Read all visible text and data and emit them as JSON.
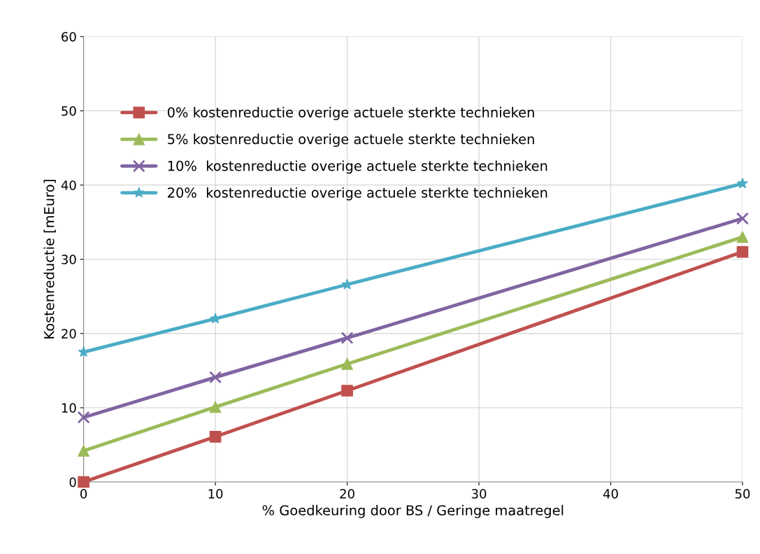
{
  "chart_data": {
    "type": "line",
    "xlabel": "% Goedkeuring door BS / Geringe maatregel",
    "ylabel": "Kostenreductie [mEuro]",
    "x": [
      0,
      10,
      20,
      50
    ],
    "series": [
      {
        "name": "0% kostenreductie overige actuele sterkte technieken",
        "color": "#c0504d",
        "marker": "square",
        "values": [
          0,
          6.1,
          12.3,
          31.0
        ]
      },
      {
        "name": "5% kostenreductie overige actuele sterkte technieken",
        "color": "#9bbb59",
        "marker": "triangle",
        "values": [
          4.2,
          10.1,
          15.9,
          33.0
        ]
      },
      {
        "name": "10%  kostenreductie overige actuele sterkte technieken",
        "color": "#8064a2",
        "marker": "cross",
        "values": [
          8.7,
          14.1,
          19.4,
          35.5
        ]
      },
      {
        "name": "20%  kostenreductie overige actuele sterkte technieken",
        "color": "#4bacc6",
        "marker": "star",
        "values": [
          17.5,
          22.0,
          26.6,
          40.2
        ]
      }
    ],
    "xlim": [
      0,
      50
    ],
    "xticks": [
      0,
      10,
      20,
      30,
      40,
      50
    ],
    "ylim": [
      0,
      60
    ],
    "yticks": [
      0,
      10,
      20,
      30,
      40,
      50,
      60
    ],
    "grid": true,
    "legend": "top left",
    "line_style": "solid"
  }
}
